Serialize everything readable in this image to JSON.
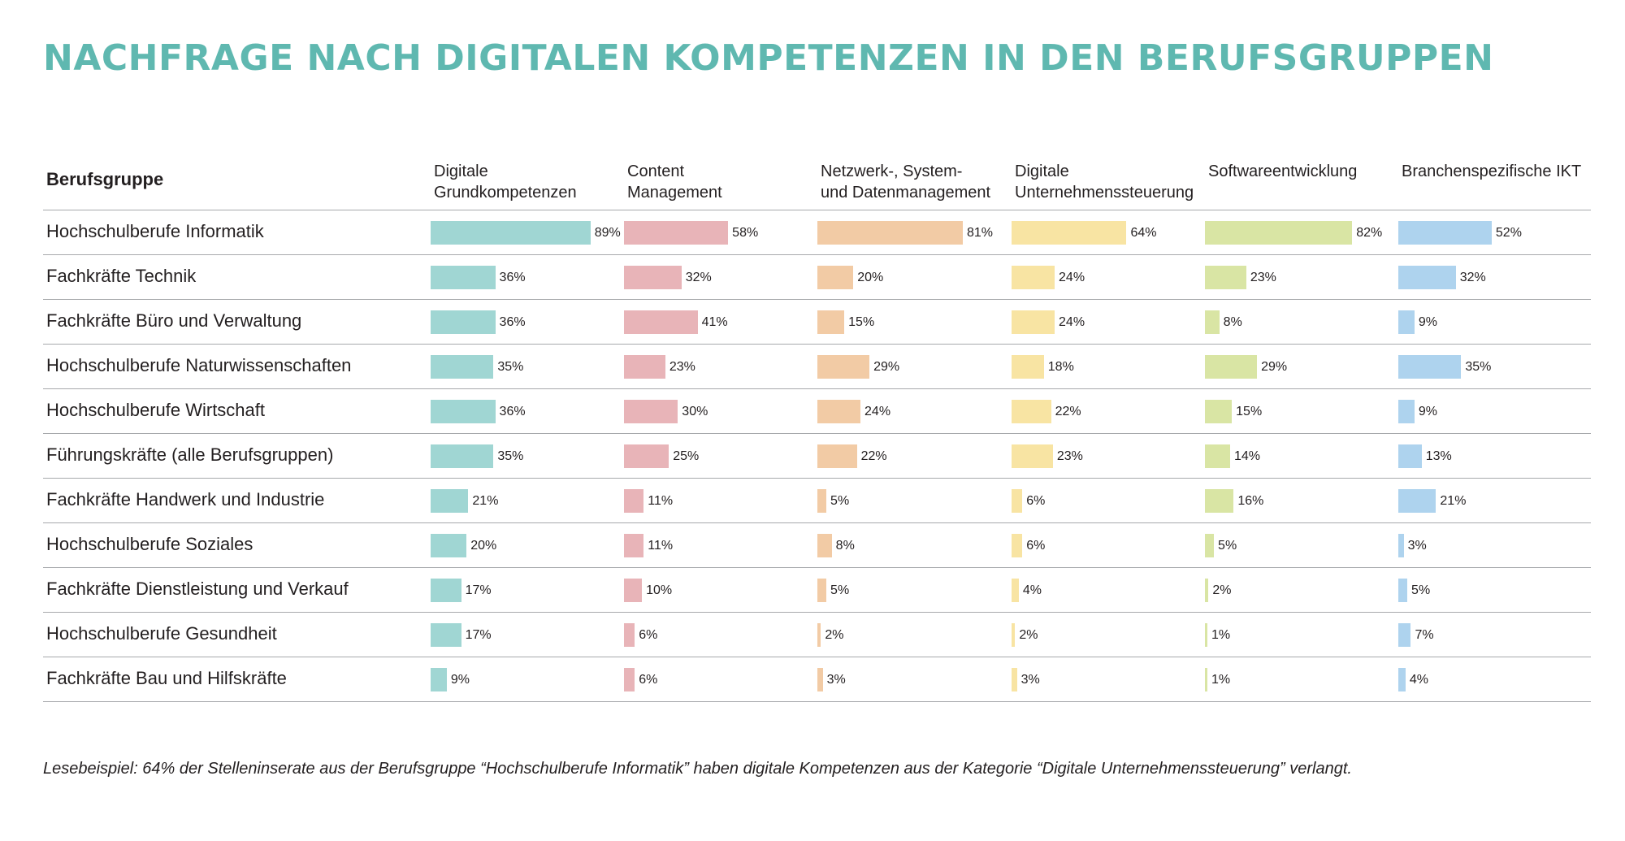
{
  "title": "NACHFRAGE NACH DIGITALEN KOMPETENZEN IN DEN BERUFSGRUPPEN",
  "row_header": "Berufsgruppe",
  "note": "Lesebeispiel: 64% der Stelleninserate aus der Berufsgruppe “Hochschulberufe Informatik” haben digitale Kompetenzen aus der Kategorie “Digitale Unternehmenssteuerung” verlangt.",
  "chart_data": {
    "type": "bar",
    "title": "NACHFRAGE NACH DIGITALEN KOMPETENZEN IN DEN BERUFSGRUPPEN",
    "unit": "%",
    "categories": [
      "Hochschulberufe Informatik",
      "Fachkräfte Technik",
      "Fachkräfte Büro und Verwaltung",
      "Hochschulberufe Naturwissenschaften",
      "Hochschulberufe Wirtschaft",
      "Führungskräfte (alle Berufsgruppen)",
      "Fachkräfte Handwerk und Industrie",
      "Hochschulberufe Soziales",
      "Fachkräfte Dienstleistung und Verkauf",
      "Hochschulberufe Gesundheit",
      "Fachkräfte Bau und Hilfskräfte"
    ],
    "series": [
      {
        "name": "Digitale\nGrundkompetenzen",
        "color": "#a0d6d3",
        "values": [
          89,
          36,
          36,
          35,
          36,
          35,
          21,
          20,
          17,
          17,
          9
        ]
      },
      {
        "name": "Content\nManagement",
        "color": "#e8b4b8",
        "values": [
          58,
          32,
          41,
          23,
          30,
          25,
          11,
          11,
          10,
          6,
          6
        ]
      },
      {
        "name": "Netzwerk-, System-\nund Datenmanagement",
        "color": "#f2cba5",
        "values": [
          81,
          20,
          15,
          29,
          24,
          22,
          5,
          8,
          5,
          2,
          3
        ]
      },
      {
        "name": "Digitale\nUnternehmenssteuerung",
        "color": "#f8e4a3",
        "values": [
          64,
          24,
          24,
          18,
          22,
          23,
          6,
          6,
          4,
          2,
          3
        ]
      },
      {
        "name": "Softwareentwicklung",
        "color": "#d9e5a4",
        "values": [
          82,
          23,
          8,
          29,
          15,
          14,
          16,
          5,
          2,
          1,
          1
        ]
      },
      {
        "name": "Branchenspezifische IKT",
        "color": "#aed3ee",
        "values": [
          52,
          32,
          9,
          35,
          9,
          13,
          21,
          3,
          5,
          7,
          4
        ]
      }
    ],
    "xlim": [
      0,
      100
    ]
  }
}
